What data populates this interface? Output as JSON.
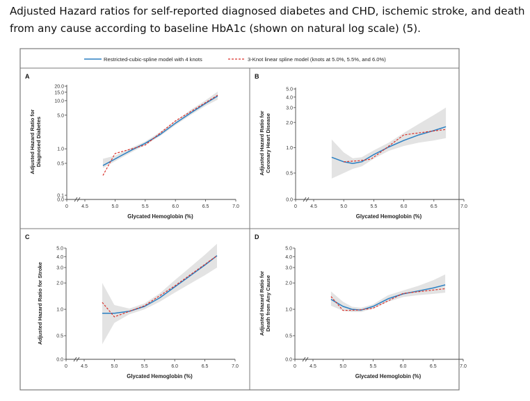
{
  "caption": {
    "line1": "Adjusted Hazard ratios for self-reported diagnosed diabetes and CHD, ischemic stroke, and death",
    "line2": "from any cause according to baseline HbA1c (shown on natural log scale) (5)."
  },
  "legend": {
    "placement": "top-center",
    "items": [
      {
        "label": "Restricted-cubic-spline model with 4 knots",
        "color": "#2a7fc2",
        "style": "solid"
      },
      {
        "label": "3-Knot linear spline model (knots at 5.0%, 5.5%, and 6.0%)",
        "color": "#d9312b",
        "style": "dashed"
      }
    ]
  },
  "colors": {
    "ci_band": "#e3e3e3",
    "frame": "#7a7a7a",
    "axis": "#444444"
  },
  "chart_data": [
    {
      "panel": "A",
      "type": "line",
      "title": "",
      "xlabel": "Glycated Hemoglobin (%)",
      "ylabel_lines": [
        "Adjusted Hazard Ratio for",
        "Diagnosed Diabetes"
      ],
      "xlim": [
        4.5,
        7.0
      ],
      "x_ticks": [
        "4.5",
        "5.0",
        "5.5",
        "6.0",
        "6.5",
        "7.0"
      ],
      "x_zero_label": "0",
      "y_scale": "log",
      "y_ticks": [
        {
          "v": 0.0,
          "label": "0.0"
        },
        {
          "v": 0.1,
          "label": "0.1"
        },
        {
          "v": 0.5,
          "label": "0.5"
        },
        {
          "v": 1.0,
          "label": "1.0"
        },
        {
          "v": 5.0,
          "label": "5.0"
        },
        {
          "v": 10.0,
          "label": "10.0"
        },
        {
          "v": 15.0,
          "label": "15.0"
        },
        {
          "v": 20.0,
          "label": "20.0"
        }
      ],
      "series": [
        {
          "key": "rcs",
          "x": [
            4.8,
            4.95,
            5.1,
            5.3,
            5.5,
            5.75,
            6.0,
            6.25,
            6.5,
            6.7
          ],
          "y": [
            0.45,
            0.57,
            0.72,
            0.98,
            1.3,
            2.0,
            3.4,
            5.5,
            8.8,
            12.5
          ]
        },
        {
          "key": "linear",
          "x": [
            4.8,
            5.0,
            5.5,
            6.0,
            6.7
          ],
          "y": [
            0.28,
            0.8,
            1.2,
            3.8,
            13.0
          ]
        }
      ],
      "ci": {
        "x": [
          4.8,
          5.0,
          5.25,
          5.5,
          5.75,
          6.0,
          6.25,
          6.5,
          6.7
        ],
        "lower": [
          0.4,
          0.55,
          0.82,
          1.2,
          1.85,
          3.1,
          5.0,
          7.8,
          10.5
        ],
        "upper": [
          0.62,
          0.72,
          1.02,
          1.42,
          2.25,
          3.75,
          6.4,
          10.2,
          15.5
        ]
      }
    },
    {
      "panel": "B",
      "type": "line",
      "title": "",
      "xlabel": "Glycated Hemoglobin (%)",
      "ylabel_lines": [
        "Adjusted Hazard Ratio for",
        "Coronary Heart Disease"
      ],
      "xlim": [
        4.5,
        7.0
      ],
      "x_ticks": [
        "4.5",
        "5.0",
        "5.5",
        "6.0",
        "6.5",
        "7.0"
      ],
      "x_zero_label": "0",
      "y_scale": "log",
      "y_ticks": [
        {
          "v": 0.0,
          "label": "0.0"
        },
        {
          "v": 0.5,
          "label": "0.5"
        },
        {
          "v": 1.0,
          "label": "1.0"
        },
        {
          "v": 2.0,
          "label": "2.0"
        },
        {
          "v": 3.0,
          "label": "3.0"
        },
        {
          "v": 4.0,
          "label": "4.0"
        },
        {
          "v": 5.0,
          "label": "5.0"
        }
      ],
      "series": [
        {
          "key": "rcs",
          "x": [
            4.8,
            5.0,
            5.15,
            5.3,
            5.5,
            5.75,
            6.0,
            6.25,
            6.5,
            6.7
          ],
          "y": [
            0.77,
            0.68,
            0.65,
            0.68,
            0.83,
            1.02,
            1.22,
            1.42,
            1.6,
            1.78
          ]
        },
        {
          "key": "linear",
          "x": [
            5.0,
            5.25,
            5.45,
            5.6,
            6.0,
            6.4,
            6.7
          ],
          "y": [
            0.68,
            0.7,
            0.73,
            0.87,
            1.42,
            1.55,
            1.65
          ]
        }
      ],
      "ci": {
        "x": [
          4.8,
          5.0,
          5.15,
          5.3,
          5.5,
          5.75,
          6.0,
          6.25,
          6.5,
          6.7
        ],
        "lower": [
          0.43,
          0.5,
          0.56,
          0.6,
          0.74,
          0.92,
          1.05,
          1.15,
          1.22,
          1.3
        ],
        "upper": [
          1.25,
          0.88,
          0.75,
          0.77,
          0.93,
          1.15,
          1.5,
          1.92,
          2.45,
          3.0
        ]
      }
    },
    {
      "panel": "C",
      "type": "line",
      "title": "",
      "xlabel": "Glycated Hemoglobin (%)",
      "ylabel_lines": [
        "Adjusted Hazard Ratio for Stroke"
      ],
      "xlim": [
        4.5,
        7.0
      ],
      "x_ticks": [
        "4.5",
        "5.0",
        "5.5",
        "6.0",
        "6.5",
        "7.0"
      ],
      "x_zero_label": "0",
      "y_scale": "log",
      "y_ticks": [
        {
          "v": 0.0,
          "label": "0.0"
        },
        {
          "v": 0.5,
          "label": "0.5"
        },
        {
          "v": 1.0,
          "label": "1.0"
        },
        {
          "v": 2.0,
          "label": "2.0"
        },
        {
          "v": 3.0,
          "label": "3.0"
        },
        {
          "v": 4.0,
          "label": "4.0"
        },
        {
          "v": 5.0,
          "label": "5.0"
        }
      ],
      "series": [
        {
          "key": "rcs",
          "x": [
            4.8,
            5.0,
            5.25,
            5.5,
            5.75,
            6.0,
            6.25,
            6.5,
            6.7
          ],
          "y": [
            0.9,
            0.9,
            0.95,
            1.08,
            1.35,
            1.8,
            2.4,
            3.2,
            4.1
          ]
        },
        {
          "key": "linear",
          "x": [
            4.8,
            5.0,
            5.5,
            6.0,
            6.7
          ],
          "y": [
            1.2,
            0.82,
            1.1,
            1.85,
            4.1
          ]
        }
      ],
      "ci": {
        "x": [
          4.8,
          5.0,
          5.25,
          5.5,
          5.75,
          6.0,
          6.25,
          6.5,
          6.7
        ],
        "lower": [
          0.4,
          0.7,
          0.88,
          1.0,
          1.22,
          1.55,
          1.95,
          2.45,
          3.0
        ],
        "upper": [
          2.0,
          1.12,
          1.02,
          1.17,
          1.52,
          2.15,
          3.0,
          4.2,
          5.6
        ]
      }
    },
    {
      "panel": "D",
      "type": "line",
      "title": "",
      "xlabel": "Glycated Hemoglobin (%)",
      "ylabel_lines": [
        "Adjusted Hazard Ratio for",
        "Death from Any Cause"
      ],
      "xlim": [
        4.5,
        7.0
      ],
      "x_ticks": [
        "4.5",
        "5.0",
        "5.5",
        "6.0",
        "6.5",
        "7.0"
      ],
      "x_zero_label": "0",
      "y_scale": "log",
      "y_ticks": [
        {
          "v": 0.0,
          "label": "0.0"
        },
        {
          "v": 0.5,
          "label": "0.5"
        },
        {
          "v": 1.0,
          "label": "1.0"
        },
        {
          "v": 2.0,
          "label": "2.0"
        },
        {
          "v": 3.0,
          "label": "3.0"
        },
        {
          "v": 4.0,
          "label": "4.0"
        },
        {
          "v": 5.0,
          "label": "5.0"
        }
      ],
      "series": [
        {
          "key": "rcs",
          "x": [
            4.8,
            5.0,
            5.15,
            5.3,
            5.5,
            5.75,
            6.0,
            6.25,
            6.5,
            6.7
          ],
          "y": [
            1.3,
            1.08,
            1.0,
            0.98,
            1.08,
            1.32,
            1.5,
            1.62,
            1.75,
            1.9
          ]
        },
        {
          "key": "linear",
          "x": [
            4.8,
            5.0,
            5.25,
            5.5,
            6.0,
            6.7
          ],
          "y": [
            1.4,
            0.97,
            0.98,
            1.03,
            1.52,
            1.72
          ]
        }
      ],
      "ci": {
        "x": [
          4.8,
          5.0,
          5.15,
          5.3,
          5.5,
          5.75,
          6.0,
          6.25,
          6.5,
          6.7
        ],
        "lower": [
          1.1,
          0.96,
          0.93,
          0.93,
          1.02,
          1.22,
          1.38,
          1.45,
          1.5,
          1.55
        ],
        "upper": [
          1.6,
          1.22,
          1.07,
          1.04,
          1.14,
          1.45,
          1.64,
          1.85,
          2.15,
          2.5
        ]
      }
    }
  ]
}
